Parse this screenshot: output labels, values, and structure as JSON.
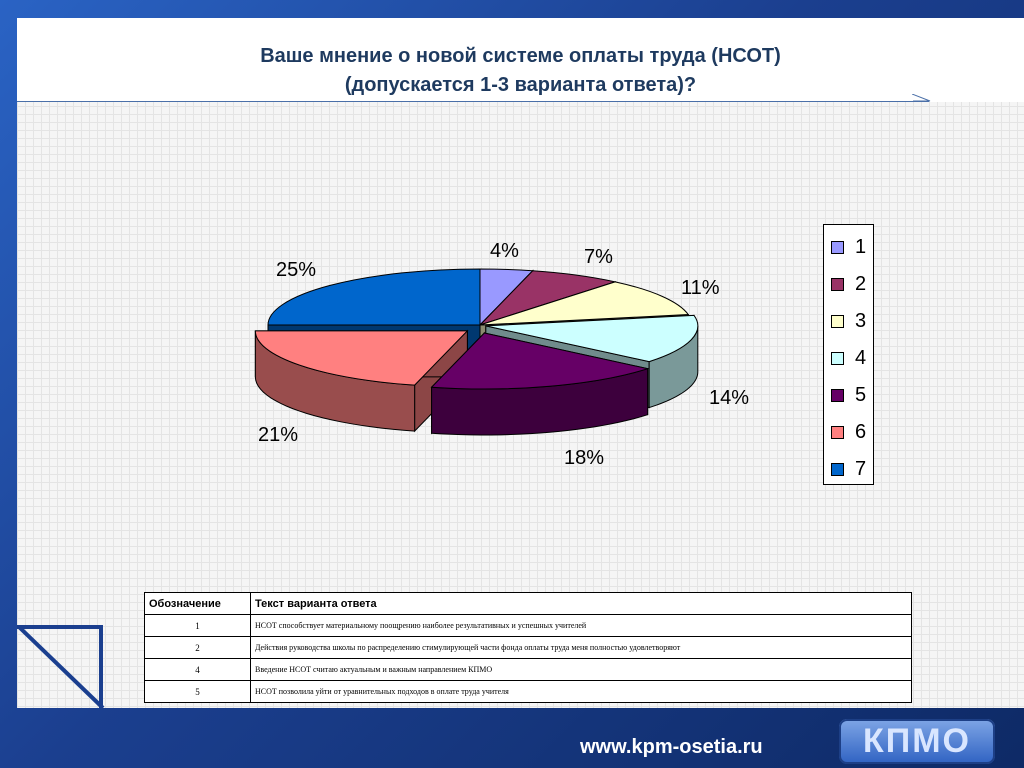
{
  "title": {
    "line1": "Ваше мнение о новой системе оплаты труда (НСОТ)",
    "line2": "(допускается 1-3 варианта ответа)?"
  },
  "chart_data": {
    "type": "pie",
    "categories": [
      "1",
      "2",
      "3",
      "4",
      "5",
      "6",
      "7"
    ],
    "values": [
      4,
      7,
      11,
      14,
      18,
      21,
      25
    ],
    "value_labels": [
      "4%",
      "7%",
      "11%",
      "14%",
      "18%",
      "21%",
      "25%"
    ],
    "colors": [
      "#9999ff",
      "#993366",
      "#ffffcc",
      "#ccffff",
      "#660066",
      "#ff8080",
      "#0066cc"
    ],
    "style": "3d-exploded",
    "legend_position": "right"
  },
  "table": {
    "headers": [
      "Обозначение",
      "Текст варианта ответа"
    ],
    "rows": [
      {
        "code": "1",
        "text": "НСОТ способствует материальному поощрению наиболее  результативных и успешных учителей"
      },
      {
        "code": "2",
        "text": "Действия руководства школы по распределению стимулирующей части фонда оплаты труда меня полностью удовлетворяют"
      },
      {
        "code": "4",
        "text": "Введение НСОТ считаю актуальным и важным направлением КПМО"
      },
      {
        "code": "5",
        "text": "НСОТ позволила уйти от уравнительных подходов в оплате труда учителя"
      }
    ]
  },
  "footer": {
    "url": "www.kpm-osetia.ru",
    "logo_text": "КПМО"
  }
}
